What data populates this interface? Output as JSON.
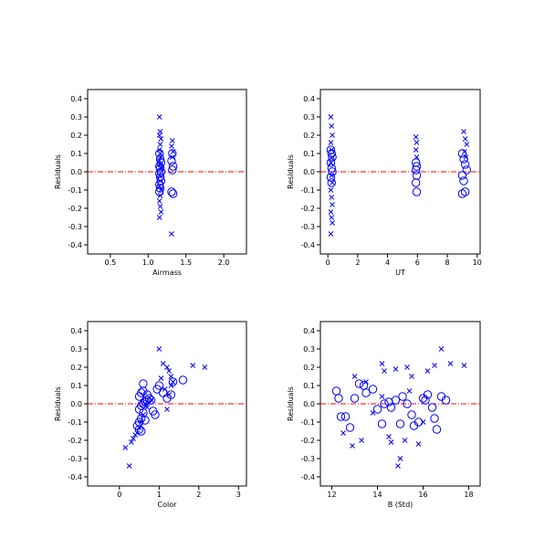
{
  "colors": {
    "marker": "#0000ff",
    "reference_line": "#ff0000",
    "axis": "#000000",
    "background": "#ffffff"
  },
  "chart_data": [
    {
      "type": "scatter",
      "xlabel": "Airmass",
      "ylabel": "Residuals",
      "xlim": [
        0.2,
        2.3
      ],
      "ylim": [
        -0.45,
        0.45
      ],
      "xticks": [
        0.5,
        1.0,
        1.5,
        2.0
      ],
      "xtick_labels": [
        "0.5",
        "1.0",
        "1.5",
        "2.0"
      ],
      "yticks": [
        -0.4,
        -0.3,
        -0.2,
        -0.1,
        0.0,
        0.1,
        0.2,
        0.3,
        0.4
      ],
      "ytick_labels": [
        "-0.4",
        "-0.3",
        "-0.2",
        "-0.1",
        "0.0",
        "0.1",
        "0.2",
        "0.3",
        "0.4"
      ],
      "reference_line_y": 0.0,
      "grid": false,
      "series": [
        {
          "marker": "cross",
          "x": [
            1.15,
            1.16,
            1.15,
            1.17,
            1.16,
            1.15,
            1.16,
            1.17,
            1.15,
            1.16,
            1.17,
            1.15,
            1.16,
            1.15,
            1.17,
            1.16,
            1.15,
            1.16,
            1.17,
            1.15,
            1.32,
            1.31,
            1.33,
            1.32,
            1.31
          ],
          "y": [
            0.3,
            0.22,
            0.2,
            0.18,
            0.15,
            0.12,
            0.1,
            0.08,
            0.06,
            0.04,
            0.02,
            -0.02,
            -0.05,
            -0.08,
            -0.1,
            -0.13,
            -0.16,
            -0.19,
            -0.22,
            -0.25,
            0.17,
            0.14,
            0.11,
            0.08,
            -0.34
          ]
        },
        {
          "marker": "circle",
          "x": [
            1.15,
            1.16,
            1.17,
            1.15,
            1.16,
            1.17,
            1.15,
            1.16,
            1.17,
            1.15,
            1.16,
            1.15,
            1.32,
            1.31,
            1.33,
            1.32,
            1.31,
            1.33
          ],
          "y": [
            0.1,
            0.07,
            0.05,
            0.03,
            0.02,
            0.0,
            -0.01,
            -0.03,
            -0.05,
            -0.07,
            -0.09,
            -0.11,
            0.1,
            0.06,
            0.03,
            0.01,
            -0.11,
            -0.12
          ]
        }
      ]
    },
    {
      "type": "scatter",
      "xlabel": "UT",
      "ylabel": "Residuals",
      "xlim": [
        -0.5,
        10.2
      ],
      "ylim": [
        -0.45,
        0.45
      ],
      "xticks": [
        0,
        2,
        4,
        6,
        8,
        10
      ],
      "xtick_labels": [
        "0",
        "2",
        "4",
        "6",
        "8",
        "10"
      ],
      "yticks": [
        -0.4,
        -0.3,
        -0.2,
        -0.1,
        0.0,
        0.1,
        0.2,
        0.3,
        0.4
      ],
      "ytick_labels": [
        "-0.4",
        "-0.3",
        "-0.2",
        "-0.1",
        "0.0",
        "0.1",
        "0.2",
        "0.3",
        "0.4"
      ],
      "reference_line_y": 0.0,
      "grid": false,
      "series": [
        {
          "marker": "cross",
          "x": [
            0.2,
            0.25,
            0.3,
            0.2,
            0.25,
            0.3,
            0.2,
            0.25,
            0.3,
            0.2,
            0.25,
            0.3,
            0.2,
            0.25,
            0.3,
            0.2,
            5.9,
            5.95,
            5.9,
            5.95,
            9.1,
            9.2,
            9.3,
            9.15,
            9.25
          ],
          "y": [
            0.3,
            0.25,
            0.2,
            0.16,
            0.12,
            0.08,
            0.05,
            -0.02,
            -0.06,
            -0.1,
            -0.14,
            -0.18,
            -0.22,
            -0.25,
            -0.28,
            -0.34,
            0.19,
            0.16,
            0.12,
            0.08,
            0.22,
            0.18,
            0.15,
            0.11,
            0.08
          ]
        },
        {
          "marker": "circle",
          "x": [
            0.2,
            0.25,
            0.3,
            0.2,
            0.25,
            0.3,
            0.2,
            0.25,
            5.9,
            5.95,
            5.9,
            5.95,
            5.9,
            5.95,
            9.0,
            9.1,
            9.2,
            9.3,
            9.0,
            9.1,
            9.2,
            9.0
          ],
          "y": [
            0.12,
            0.1,
            0.08,
            0.05,
            0.02,
            0.0,
            -0.03,
            -0.06,
            0.05,
            0.03,
            0.01,
            -0.02,
            -0.06,
            -0.11,
            0.1,
            0.07,
            0.04,
            0.01,
            -0.02,
            -0.05,
            -0.11,
            -0.12
          ]
        }
      ]
    },
    {
      "type": "scatter",
      "xlabel": "Color",
      "ylabel": "Residuals",
      "xlim": [
        -0.8,
        3.2
      ],
      "ylim": [
        -0.45,
        0.45
      ],
      "xticks": [
        0,
        1,
        2,
        3
      ],
      "xtick_labels": [
        "0",
        "1",
        "2",
        "3"
      ],
      "yticks": [
        -0.4,
        -0.3,
        -0.2,
        -0.1,
        0.0,
        0.1,
        0.2,
        0.3,
        0.4
      ],
      "ytick_labels": [
        "-0.4",
        "-0.3",
        "-0.2",
        "-0.1",
        "0.0",
        "0.1",
        "0.2",
        "0.3",
        "0.4"
      ],
      "reference_line_y": 0.0,
      "grid": false,
      "series": [
        {
          "marker": "cross",
          "x": [
            0.15,
            0.25,
            0.3,
            0.35,
            0.4,
            0.45,
            0.5,
            0.55,
            0.6,
            0.7,
            0.8,
            1.0,
            1.1,
            1.2,
            1.25,
            1.3,
            1.35,
            1.3,
            1.85,
            2.15,
            1.05,
            1.15,
            1.25,
            1.2,
            0.65
          ],
          "y": [
            -0.24,
            -0.34,
            -0.21,
            -0.19,
            -0.17,
            -0.16,
            -0.13,
            -0.1,
            -0.06,
            -0.02,
            0.02,
            0.3,
            0.22,
            0.2,
            0.18,
            0.15,
            0.12,
            0.1,
            0.21,
            0.2,
            0.14,
            0.08,
            0.05,
            -0.03,
            0.0
          ]
        },
        {
          "marker": "circle",
          "x": [
            0.45,
            0.5,
            0.55,
            0.6,
            0.5,
            0.55,
            0.6,
            0.65,
            0.7,
            0.5,
            0.55,
            0.6,
            0.7,
            0.75,
            0.8,
            0.85,
            0.9,
            0.5,
            0.55,
            0.95,
            1.0,
            1.1,
            1.2,
            1.3,
            1.35,
            1.6,
            0.6,
            0.65
          ],
          "y": [
            -0.12,
            -0.1,
            -0.08,
            -0.05,
            -0.03,
            -0.01,
            0.0,
            0.01,
            0.02,
            0.04,
            0.06,
            0.07,
            0.05,
            0.03,
            0.02,
            -0.04,
            -0.06,
            -0.14,
            -0.15,
            0.08,
            0.1,
            0.06,
            0.03,
            0.05,
            0.12,
            0.13,
            0.11,
            -0.09
          ]
        }
      ]
    },
    {
      "type": "scatter",
      "xlabel": "B (Std)",
      "ylabel": "Residuals",
      "xlim": [
        11.5,
        18.5
      ],
      "ylim": [
        -0.45,
        0.45
      ],
      "xticks": [
        12,
        14,
        16,
        18
      ],
      "xtick_labels": [
        "12",
        "14",
        "16",
        "18"
      ],
      "yticks": [
        -0.4,
        -0.3,
        -0.2,
        -0.1,
        0.0,
        0.1,
        0.2,
        0.3,
        0.4
      ],
      "ytick_labels": [
        "-0.4",
        "-0.3",
        "-0.2",
        "-0.1",
        "0.0",
        "0.1",
        "0.2",
        "0.3",
        "0.4"
      ],
      "reference_line_y": 0.0,
      "grid": false,
      "series": [
        {
          "marker": "cross",
          "x": [
            12.5,
            12.9,
            13.0,
            13.3,
            13.5,
            13.8,
            14.2,
            14.3,
            14.5,
            14.6,
            14.8,
            14.9,
            15.0,
            15.2,
            15.3,
            15.5,
            15.8,
            16.2,
            16.5,
            16.8,
            17.2,
            17.8,
            16.0,
            15.4,
            14.2
          ],
          "y": [
            -0.16,
            -0.23,
            0.15,
            -0.2,
            0.12,
            -0.05,
            0.22,
            0.18,
            -0.18,
            -0.21,
            0.19,
            -0.34,
            -0.3,
            -0.2,
            0.2,
            0.15,
            -0.22,
            0.18,
            0.21,
            0.3,
            0.22,
            0.21,
            -0.1,
            0.07,
            0.04
          ]
        },
        {
          "marker": "circle",
          "x": [
            12.2,
            12.3,
            12.4,
            12.6,
            12.8,
            13.0,
            13.2,
            13.4,
            13.5,
            13.8,
            14.0,
            14.2,
            14.3,
            14.5,
            14.6,
            14.8,
            15.0,
            15.1,
            15.3,
            15.5,
            15.6,
            15.8,
            16.0,
            16.1,
            16.2,
            16.4,
            16.5,
            16.6,
            16.8,
            17.0
          ],
          "y": [
            0.07,
            0.03,
            -0.07,
            -0.07,
            -0.13,
            0.03,
            0.11,
            0.1,
            0.06,
            0.08,
            -0.03,
            -0.11,
            0.0,
            0.01,
            -0.02,
            0.02,
            -0.11,
            0.04,
            0.0,
            -0.06,
            -0.12,
            -0.1,
            0.03,
            0.02,
            0.05,
            -0.02,
            -0.08,
            -0.14,
            0.04,
            0.02
          ]
        }
      ]
    }
  ]
}
